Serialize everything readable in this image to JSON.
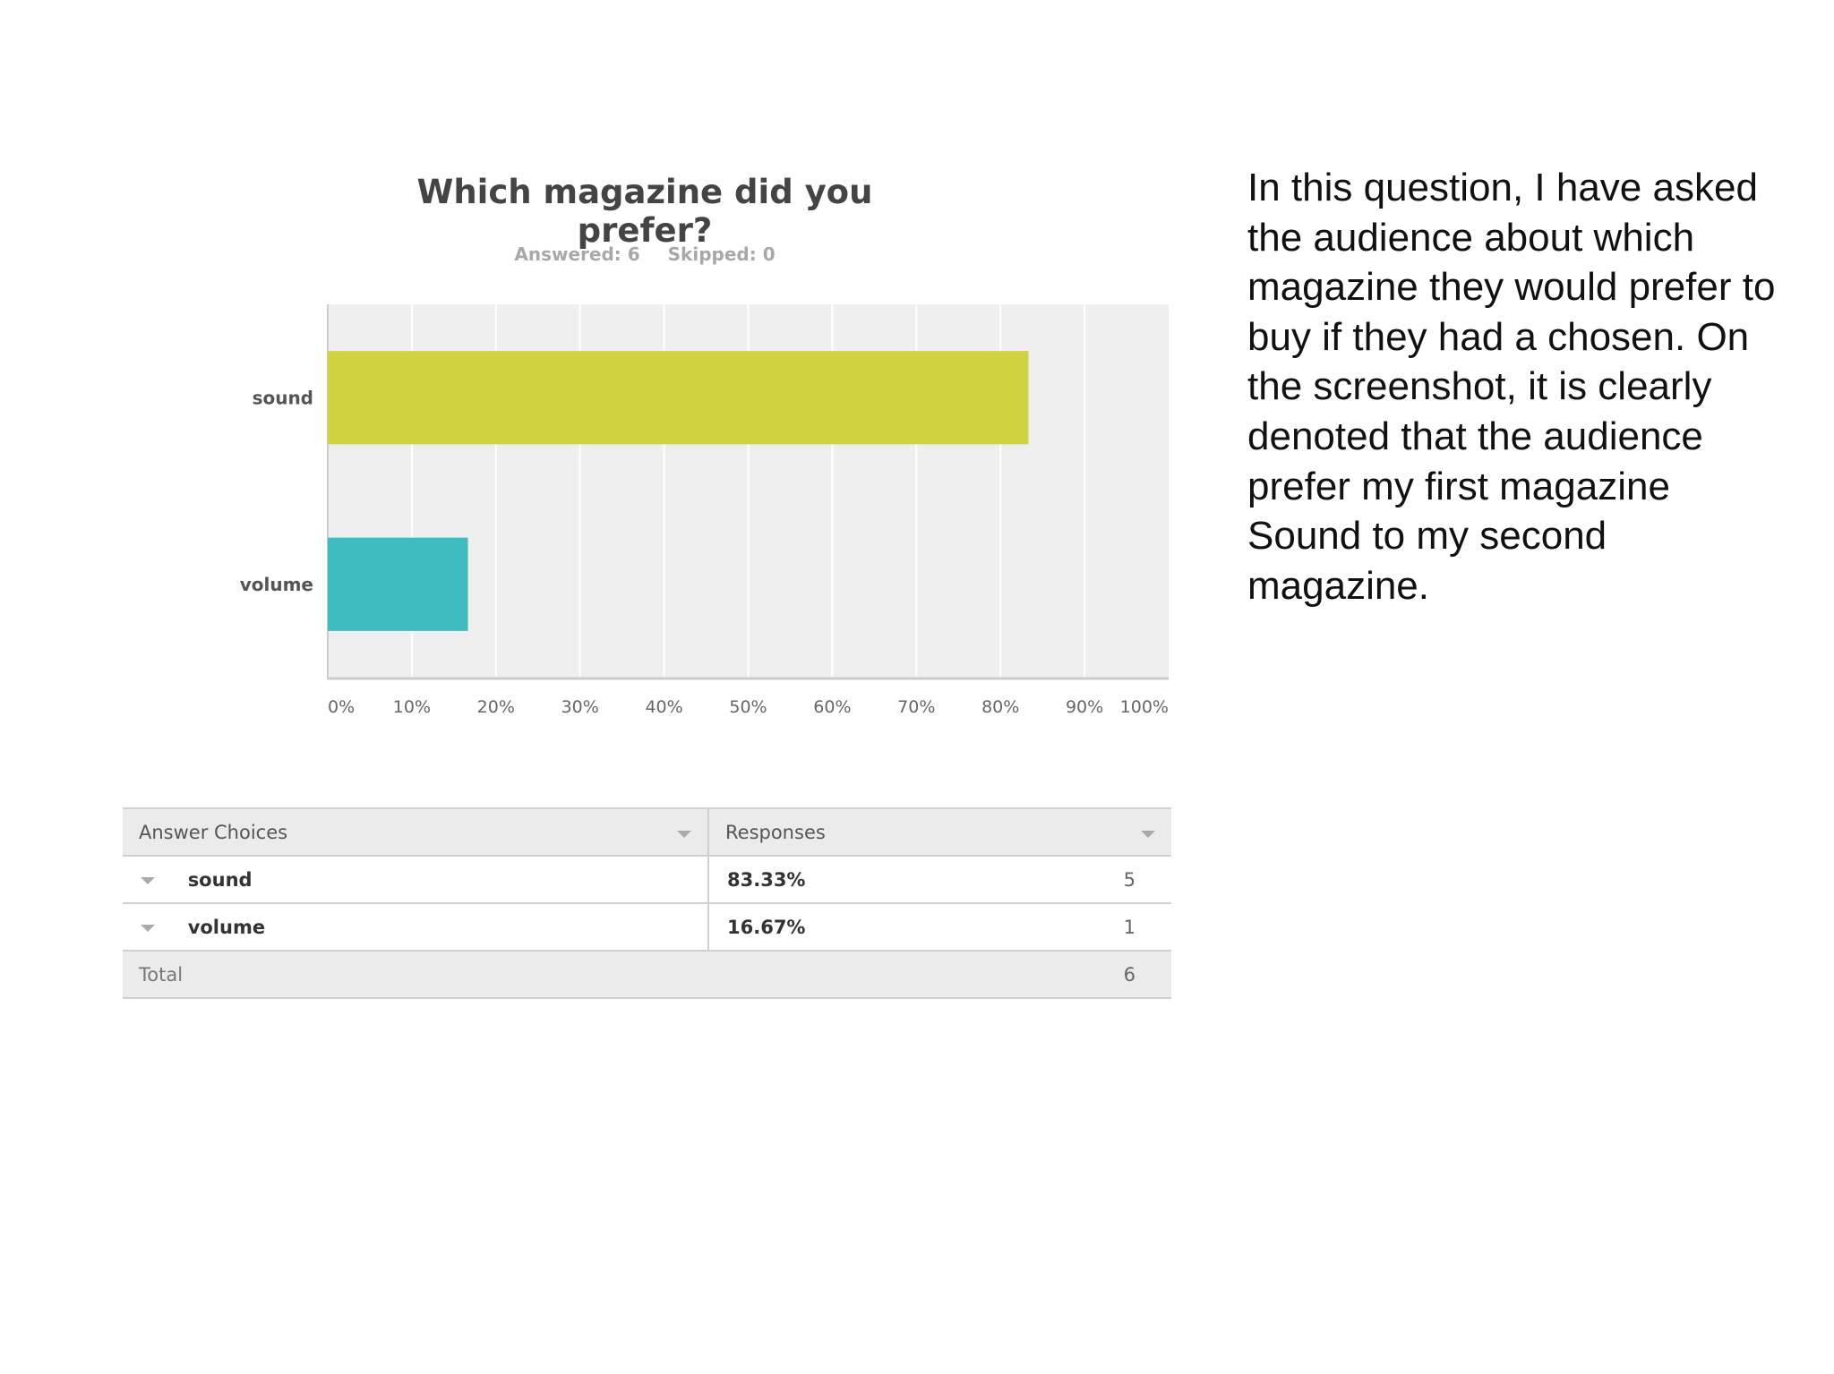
{
  "chart_data": {
    "type": "bar",
    "orientation": "horizontal",
    "title": "Which magazine did you prefer?",
    "answered": "Answered: 6",
    "skipped": "Skipped: 0",
    "categories": [
      "sound",
      "volume"
    ],
    "values": [
      83.33,
      16.67
    ],
    "colors": [
      "#d0d240",
      "#3dbdbf"
    ],
    "xlim": [
      0,
      100
    ],
    "x_ticks": [
      "0%",
      "10%",
      "20%",
      "30%",
      "40%",
      "50%",
      "60%",
      "70%",
      "80%",
      "90%",
      "100%"
    ],
    "grid": true
  },
  "table": {
    "header_choices": "Answer Choices",
    "header_responses": "Responses",
    "rows": [
      {
        "choice": "sound",
        "percent": "83.33%",
        "count": "5"
      },
      {
        "choice": "volume",
        "percent": "16.67%",
        "count": "1"
      }
    ],
    "total_label": "Total",
    "total_count": "6"
  },
  "description": "In this question, I have asked the audience about which magazine they would prefer to buy if they had a chosen. On the screenshot, it is clearly denoted that the audience prefer my first magazine Sound to my second magazine."
}
